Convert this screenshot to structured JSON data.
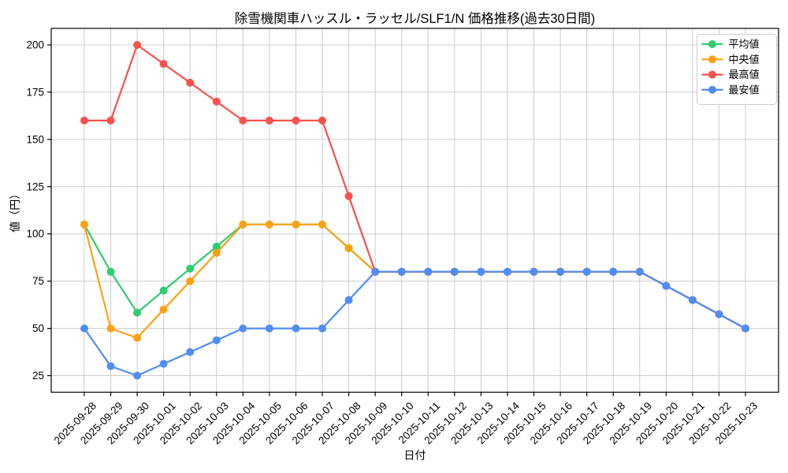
{
  "chart_data": {
    "type": "line",
    "title": "除雪機関車ハッスル・ラッセル/SLF1/N 価格推移(過去30日間)",
    "xlabel": "日付",
    "ylabel": "値（円）",
    "x": [
      "2025-09-28",
      "2025-09-29",
      "2025-09-30",
      "2025-10-01",
      "2025-10-02",
      "2025-10-03",
      "2025-10-04",
      "2025-10-05",
      "2025-10-06",
      "2025-10-07",
      "2025-10-08",
      "2025-10-09",
      "2025-10-10",
      "2025-10-11",
      "2025-10-12",
      "2025-10-13",
      "2025-10-14",
      "2025-10-15",
      "2025-10-16",
      "2025-10-17",
      "2025-10-18",
      "2025-10-19",
      "2025-10-20",
      "2025-10-21",
      "2025-10-22",
      "2025-10-23"
    ],
    "yticks": [
      25,
      50,
      75,
      100,
      125,
      150,
      175,
      200
    ],
    "ylim": [
      16.25,
      208.75
    ],
    "grid": true,
    "grid_color": "#cccccc",
    "axis_color": "#000000",
    "background_color": "#ffffff",
    "legend_position": "upper right",
    "series": [
      {
        "name": "平均値",
        "color": "#2ecc71",
        "values": [
          105,
          80,
          58.33,
          70,
          81.67,
          93.33,
          105,
          105,
          105,
          105,
          92.5,
          80,
          80,
          80,
          80,
          80,
          80,
          80,
          80,
          80,
          80,
          80,
          72.5,
          65,
          57.5,
          50
        ]
      },
      {
        "name": "中央値",
        "color": "#ffa113",
        "values": [
          105,
          50,
          45,
          60,
          75,
          90,
          105,
          105,
          105,
          105,
          92.5,
          80,
          80,
          80,
          80,
          80,
          80,
          80,
          80,
          80,
          80,
          80,
          72.5,
          65,
          57.5,
          50
        ]
      },
      {
        "name": "最高値",
        "color": "#f8514d",
        "values": [
          160,
          160,
          200,
          190,
          180,
          170,
          160,
          160,
          160,
          160,
          120,
          80,
          80,
          80,
          80,
          80,
          80,
          80,
          80,
          80,
          80,
          80,
          72.5,
          65,
          57.5,
          50
        ]
      },
      {
        "name": "最安値",
        "color": "#4f8df5",
        "values": [
          50,
          30,
          25,
          31.25,
          37.5,
          43.75,
          50,
          50,
          50,
          50,
          65,
          80,
          80,
          80,
          80,
          80,
          80,
          80,
          80,
          80,
          80,
          80,
          72.5,
          65,
          57.5,
          50
        ]
      }
    ]
  }
}
